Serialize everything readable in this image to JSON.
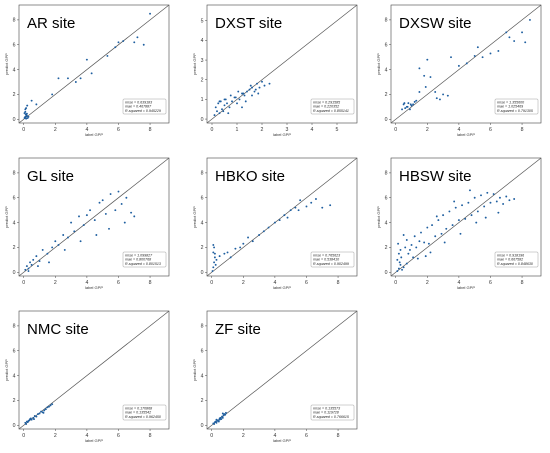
{
  "chart_data": [
    {
      "type": "scatter",
      "title": "AR site",
      "xlabel": "label GPP",
      "ylabel": "predict GPP",
      "xlim": [
        -0.3,
        9.2
      ],
      "ylim": [
        -0.3,
        9.2
      ],
      "xticks": [
        0,
        2,
        4,
        6,
        8
      ],
      "yticks": [
        0,
        2,
        4,
        6,
        8
      ],
      "stats": [
        "rmse = 0.639183",
        "mae = 0.467887",
        "R-squared = 0.945229"
      ],
      "x": [
        0.05,
        0.1,
        0.15,
        0.2,
        0.12,
        0.08,
        0.18,
        0.25,
        0.1,
        0.15,
        0.3,
        0.05,
        0.2,
        0.1,
        0.15,
        0.22,
        0.5,
        0.8,
        1.8,
        2.2,
        2.8,
        3.3,
        3.6,
        4.0,
        4.3,
        5.3,
        5.8,
        6.0,
        6.3,
        7.0,
        7.2,
        7.6,
        8.0
      ],
      "y": [
        0.1,
        0.2,
        0.05,
        0.3,
        0.4,
        0.15,
        0.25,
        0.1,
        0.6,
        0.35,
        0.2,
        0.5,
        0.45,
        0.8,
        0.9,
        1.1,
        1.5,
        1.2,
        2.0,
        3.3,
        3.3,
        3.0,
        3.3,
        4.8,
        3.7,
        5.1,
        5.8,
        6.2,
        6.3,
        6.2,
        6.6,
        6.0,
        8.5
      ]
    },
    {
      "type": "scatter",
      "title": "DXST site",
      "xlabel": "label GPP",
      "ylabel": "predict GPP",
      "xlim": [
        -0.2,
        5.8
      ],
      "ylim": [
        -0.2,
        5.8
      ],
      "xticks": [
        0,
        1,
        2,
        3,
        4,
        5
      ],
      "yticks": [
        0,
        1,
        2,
        3,
        4,
        5
      ],
      "stats": [
        "rmse = 0.291585",
        "mae = 0.220352",
        "R-squared = 0.855141"
      ],
      "x": [
        0.1,
        0.2,
        0.3,
        0.15,
        0.25,
        0.4,
        0.5,
        0.35,
        0.6,
        0.7,
        0.55,
        0.8,
        0.9,
        1.0,
        0.75,
        1.1,
        1.2,
        0.95,
        1.3,
        1.4,
        1.5,
        1.25,
        1.6,
        1.7,
        1.55,
        1.8,
        1.9,
        2.0,
        1.75,
        2.1,
        1.2,
        0.5,
        1.6,
        2.3,
        0.3,
        0.45,
        0.65,
        1.05,
        1.35,
        1.85
      ],
      "y": [
        0.2,
        0.4,
        0.3,
        0.6,
        0.8,
        0.5,
        0.7,
        0.9,
        0.8,
        0.6,
        1.0,
        0.9,
        1.1,
        0.8,
        1.2,
        1.0,
        1.3,
        1.1,
        1.2,
        1.4,
        1.5,
        1.3,
        1.6,
        1.4,
        1.7,
        1.8,
        1.6,
        1.9,
        1.5,
        1.7,
        0.6,
        1.0,
        1.2,
        1.8,
        0.9,
        0.4,
        0.3,
        1.4,
        0.9,
        1.3
      ]
    },
    {
      "type": "scatter",
      "title": "DXSW site",
      "xlabel": "label GPP",
      "ylabel": "predict GPP",
      "xlim": [
        -0.3,
        9.2
      ],
      "ylim": [
        -0.3,
        9.2
      ],
      "xticks": [
        0,
        2,
        4,
        6,
        8
      ],
      "yticks": [
        0,
        2,
        4,
        6,
        8
      ],
      "stats": [
        "rmse = 1.355600",
        "mae = 1.025469",
        "R-squared = 0.791305"
      ],
      "x": [
        0.4,
        0.5,
        0.6,
        0.7,
        0.8,
        0.9,
        1.0,
        1.1,
        0.55,
        0.75,
        0.95,
        1.2,
        1.5,
        1.8,
        1.5,
        2.0,
        2.2,
        2.5,
        3.0,
        3.3,
        3.5,
        2.8,
        4.0,
        4.5,
        5.0,
        5.2,
        5.5,
        6.0,
        6.5,
        7.0,
        7.2,
        7.5,
        8.0,
        8.2,
        8.5,
        1.3,
        1.9,
        2.6
      ],
      "y": [
        0.8,
        1.2,
        0.9,
        1.0,
        1.3,
        0.8,
        1.1,
        1.2,
        1.3,
        1.0,
        1.2,
        1.4,
        2.2,
        3.5,
        4.1,
        4.8,
        3.4,
        2.2,
        2.0,
        1.9,
        5.0,
        1.6,
        4.3,
        4.5,
        5.1,
        5.8,
        5.0,
        5.3,
        5.5,
        7.0,
        6.6,
        6.3,
        7.0,
        6.2,
        8.0,
        1.5,
        2.6,
        1.7
      ]
    },
    {
      "type": "scatter",
      "title": "GL site",
      "xlabel": "label GPP",
      "ylabel": "predict GPP",
      "xlim": [
        -0.3,
        9.2
      ],
      "ylim": [
        -0.3,
        9.2
      ],
      "xticks": [
        0,
        2,
        4,
        6,
        8
      ],
      "yticks": [
        0,
        2,
        4,
        6,
        8
      ],
      "stats": [
        "rmse = 1.099827",
        "mae = 0.800768",
        "R-squared = 0.801513"
      ],
      "x": [
        0.1,
        0.2,
        0.3,
        0.4,
        0.5,
        0.6,
        0.3,
        0.8,
        1.0,
        1.2,
        1.5,
        1.8,
        2.0,
        2.2,
        2.5,
        2.8,
        3.0,
        3.2,
        3.5,
        3.8,
        4.0,
        4.2,
        4.5,
        4.8,
        5.0,
        5.2,
        5.5,
        5.8,
        6.0,
        6.2,
        6.5,
        6.8,
        7.0,
        4.6,
        5.4,
        6.4,
        3.6,
        2.6,
        1.6,
        0.9
      ],
      "y": [
        0.2,
        0.5,
        0.3,
        0.8,
        0.6,
        1.0,
        0.1,
        1.3,
        0.9,
        1.8,
        1.5,
        2.0,
        2.5,
        2.2,
        3.0,
        2.8,
        4.0,
        3.3,
        4.5,
        3.8,
        4.6,
        5.0,
        4.2,
        5.6,
        5.8,
        4.7,
        6.3,
        5.0,
        6.5,
        5.5,
        6.0,
        4.8,
        4.5,
        3.0,
        3.5,
        4.0,
        2.5,
        1.8,
        0.8,
        0.5
      ]
    },
    {
      "type": "scatter",
      "title": "HBKO site",
      "xlabel": "label GPP",
      "ylabel": "predict GPP",
      "xlim": [
        -0.3,
        9.2
      ],
      "ylim": [
        -0.3,
        9.2
      ],
      "xticks": [
        0,
        2,
        4,
        6,
        8
      ],
      "yticks": [
        0,
        2,
        4,
        6,
        8
      ],
      "stats": [
        "rmse = 0.765623",
        "mae = 0.538410",
        "R-squared = 0.902499"
      ],
      "x": [
        0.05,
        0.1,
        0.15,
        0.2,
        0.1,
        0.15,
        0.25,
        0.3,
        0.1,
        0.2,
        0.5,
        0.8,
        1.0,
        1.2,
        1.5,
        1.8,
        2.0,
        2.3,
        2.6,
        3.0,
        3.3,
        3.6,
        4.0,
        4.3,
        4.6,
        5.0,
        5.3,
        5.6,
        6.0,
        6.3,
        6.6,
        7.0,
        7.5,
        4.8,
        5.5
      ],
      "y": [
        0.1,
        0.4,
        0.8,
        1.2,
        1.6,
        2.0,
        0.6,
        1.0,
        2.2,
        1.5,
        1.3,
        1.5,
        1.6,
        1.2,
        1.9,
        2.0,
        2.3,
        2.8,
        2.5,
        3.0,
        3.3,
        3.6,
        4.0,
        4.2,
        4.6,
        5.0,
        5.2,
        5.8,
        5.3,
        5.6,
        5.9,
        5.2,
        5.4,
        4.4,
        5.0
      ]
    },
    {
      "type": "scatter",
      "title": "HBSW site",
      "xlabel": "label GPP",
      "ylabel": "predict GPP",
      "xlim": [
        -0.3,
        9.2
      ],
      "ylim": [
        -0.3,
        9.2
      ],
      "xticks": [
        0,
        2,
        4,
        6,
        8
      ],
      "yticks": [
        0,
        2,
        4,
        6,
        8
      ],
      "stats": [
        "rmse = 0.918196",
        "mae = 0.667582",
        "R-squared = 0.848630"
      ],
      "x": [
        0.1,
        0.2,
        0.3,
        0.4,
        0.1,
        0.2,
        0.3,
        0.15,
        0.25,
        0.35,
        0.5,
        0.6,
        0.7,
        0.8,
        0.5,
        0.9,
        1.0,
        1.1,
        1.2,
        1.3,
        1.5,
        1.6,
        1.8,
        2.0,
        2.1,
        2.3,
        2.5,
        2.7,
        2.9,
        3.0,
        3.2,
        3.4,
        3.6,
        3.8,
        4.0,
        4.2,
        4.4,
        4.6,
        4.8,
        5.0,
        5.2,
        5.4,
        5.6,
        5.8,
        6.0,
        6.2,
        6.4,
        6.6,
        6.8,
        7.0,
        7.2,
        7.5,
        2.2,
        3.1,
        4.1,
        5.1,
        1.4,
        2.6,
        3.7,
        4.7,
        5.7,
        6.5,
        0.7,
        1.9
      ],
      "y": [
        0.1,
        0.3,
        0.6,
        0.2,
        1.0,
        1.5,
        1.8,
        2.3,
        0.8,
        1.2,
        0.4,
        2.0,
        2.6,
        1.5,
        3.0,
        1.8,
        2.2,
        1.2,
        2.9,
        2.0,
        2.5,
        3.2,
        2.4,
        3.6,
        2.3,
        3.8,
        2.9,
        4.2,
        3.1,
        4.6,
        3.5,
        4.9,
        3.8,
        5.2,
        4.2,
        5.4,
        4.3,
        5.6,
        4.6,
        6.0,
        4.9,
        6.2,
        5.3,
        6.4,
        5.6,
        6.3,
        5.7,
        6.0,
        5.5,
        6.1,
        5.8,
        5.9,
        1.6,
        2.4,
        3.1,
        4.0,
        1.1,
        4.5,
        5.7,
        6.6,
        4.4,
        4.8,
        0.7,
        1.3
      ]
    },
    {
      "type": "scatter",
      "title": "NMC site",
      "xlabel": "label GPP",
      "ylabel": "predict GPP",
      "xlim": [
        -0.3,
        9.2
      ],
      "ylim": [
        -0.3,
        9.2
      ],
      "xticks": [
        0,
        2,
        4,
        6,
        8
      ],
      "yticks": [
        0,
        2,
        4,
        6,
        8
      ],
      "stats": [
        "rmse = 0.170868",
        "mae = 0.135542",
        "R-squared = 0.962450"
      ],
      "x": [
        0.1,
        0.15,
        0.2,
        0.25,
        0.3,
        0.35,
        0.4,
        0.5,
        0.6,
        0.7,
        0.8,
        0.9,
        1.0,
        1.1,
        1.2,
        1.3,
        1.4,
        1.5,
        1.6,
        1.7,
        1.8,
        0.45,
        0.65,
        1.25
      ],
      "y": [
        0.2,
        0.1,
        0.3,
        0.25,
        0.35,
        0.4,
        0.5,
        0.45,
        0.6,
        0.75,
        0.7,
        0.9,
        0.95,
        1.1,
        1.05,
        1.2,
        1.3,
        1.45,
        1.5,
        1.6,
        1.7,
        0.55,
        0.5,
        1.0
      ]
    },
    {
      "type": "scatter",
      "title": "ZF site",
      "xlabel": "label GPP",
      "ylabel": "predict GPP",
      "xlim": [
        -0.3,
        9.2
      ],
      "ylim": [
        -0.3,
        9.2
      ],
      "xticks": [
        0,
        2,
        4,
        6,
        8
      ],
      "yticks": [
        0,
        2,
        4,
        6,
        8
      ],
      "stats": [
        "rmse = 0.135573",
        "mae = 0.119728",
        "R-squared = 0.766615"
      ],
      "x": [
        0.1,
        0.15,
        0.2,
        0.25,
        0.3,
        0.35,
        0.4,
        0.45,
        0.5,
        0.55,
        0.6,
        0.65,
        0.7,
        0.75,
        0.8,
        0.85,
        0.9,
        0.5,
        0.7,
        0.3
      ],
      "y": [
        0.15,
        0.1,
        0.25,
        0.3,
        0.2,
        0.35,
        0.4,
        0.3,
        0.45,
        0.6,
        0.5,
        0.7,
        0.6,
        0.8,
        0.9,
        0.85,
        1.0,
        0.55,
        0.95,
        0.45
      ]
    }
  ]
}
